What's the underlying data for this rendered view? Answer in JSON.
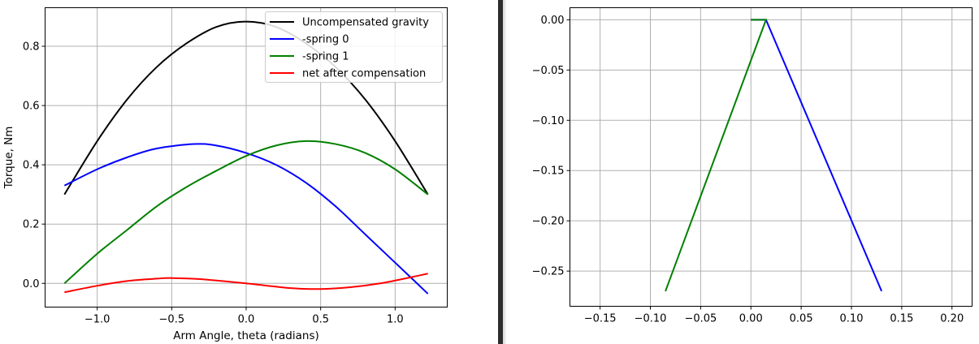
{
  "chart_data": [
    {
      "type": "line",
      "xlabel": "Arm Angle, theta (radians)",
      "ylabel": "Torque, Nm",
      "xlim": [
        -1.35,
        1.35
      ],
      "ylim": [
        -0.08,
        0.93
      ],
      "xticks": [
        -1.0,
        -0.5,
        0.0,
        0.5,
        1.0
      ],
      "xtick_labels": [
        "−1.0",
        "−0.5",
        "0.0",
        "0.5",
        "1.0"
      ],
      "yticks": [
        0.0,
        0.2,
        0.4,
        0.6,
        0.8
      ],
      "ytick_labels": [
        "0.0",
        "0.2",
        "0.4",
        "0.6",
        "0.8"
      ],
      "grid": true,
      "legend_position": "top-right",
      "series": [
        {
          "name": "Uncompensated gravity",
          "color": "#000000",
          "x": [
            -1.22,
            -1.0,
            -0.8,
            -0.6,
            -0.4,
            -0.2,
            0.0,
            0.2,
            0.4,
            0.6,
            0.8,
            1.0,
            1.22
          ],
          "y": [
            0.3,
            0.48,
            0.62,
            0.73,
            0.81,
            0.865,
            0.883,
            0.865,
            0.81,
            0.73,
            0.62,
            0.48,
            0.3
          ]
        },
        {
          "name": "-spring 0",
          "color": "#0000ff",
          "x": [
            -1.22,
            -1.0,
            -0.8,
            -0.6,
            -0.35,
            -0.2,
            0.0,
            0.2,
            0.4,
            0.6,
            0.8,
            1.0,
            1.22
          ],
          "y": [
            0.33,
            0.385,
            0.425,
            0.455,
            0.47,
            0.465,
            0.44,
            0.4,
            0.34,
            0.26,
            0.165,
            0.07,
            -0.035
          ]
        },
        {
          "name": "-spring 1",
          "color": "#008000",
          "x": [
            -1.22,
            -1.0,
            -0.8,
            -0.6,
            -0.4,
            -0.2,
            0.0,
            0.2,
            0.4,
            0.6,
            0.8,
            1.0,
            1.22
          ],
          "y": [
            0.0,
            0.1,
            0.18,
            0.26,
            0.325,
            0.38,
            0.43,
            0.465,
            0.48,
            0.47,
            0.44,
            0.385,
            0.3
          ]
        },
        {
          "name": "net after compensation",
          "color": "#ff0000",
          "x": [
            -1.22,
            -1.0,
            -0.8,
            -0.6,
            -0.5,
            -0.3,
            0.0,
            0.3,
            0.5,
            0.7,
            0.9,
            1.1,
            1.22
          ],
          "y": [
            -0.03,
            -0.008,
            0.008,
            0.016,
            0.018,
            0.014,
            0.0,
            -0.016,
            -0.019,
            -0.013,
            0.0,
            0.02,
            0.033
          ]
        }
      ]
    },
    {
      "type": "line",
      "xlim": [
        -0.18,
        0.22
      ],
      "ylim": [
        -0.285,
        0.012
      ],
      "xticks": [
        -0.15,
        -0.1,
        -0.05,
        0.0,
        0.05,
        0.1,
        0.15,
        0.2
      ],
      "xtick_labels": [
        "−0.15",
        "−0.10",
        "−0.05",
        "0.00",
        "0.05",
        "0.10",
        "0.15",
        "0.20"
      ],
      "yticks": [
        0.0,
        -0.05,
        -0.1,
        -0.15,
        -0.2,
        -0.25
      ],
      "ytick_labels": [
        "0.00",
        "−0.05",
        "−0.10",
        "−0.15",
        "−0.20",
        "−0.25"
      ],
      "grid": true,
      "series": [
        {
          "color": "#0000ff",
          "x": [
            0.0,
            0.015,
            0.13
          ],
          "y": [
            0.0,
            0.0,
            -0.27
          ]
        },
        {
          "color": "#008000",
          "x": [
            0.0,
            0.015,
            -0.085
          ],
          "y": [
            0.0,
            0.0,
            -0.27
          ]
        }
      ]
    }
  ]
}
